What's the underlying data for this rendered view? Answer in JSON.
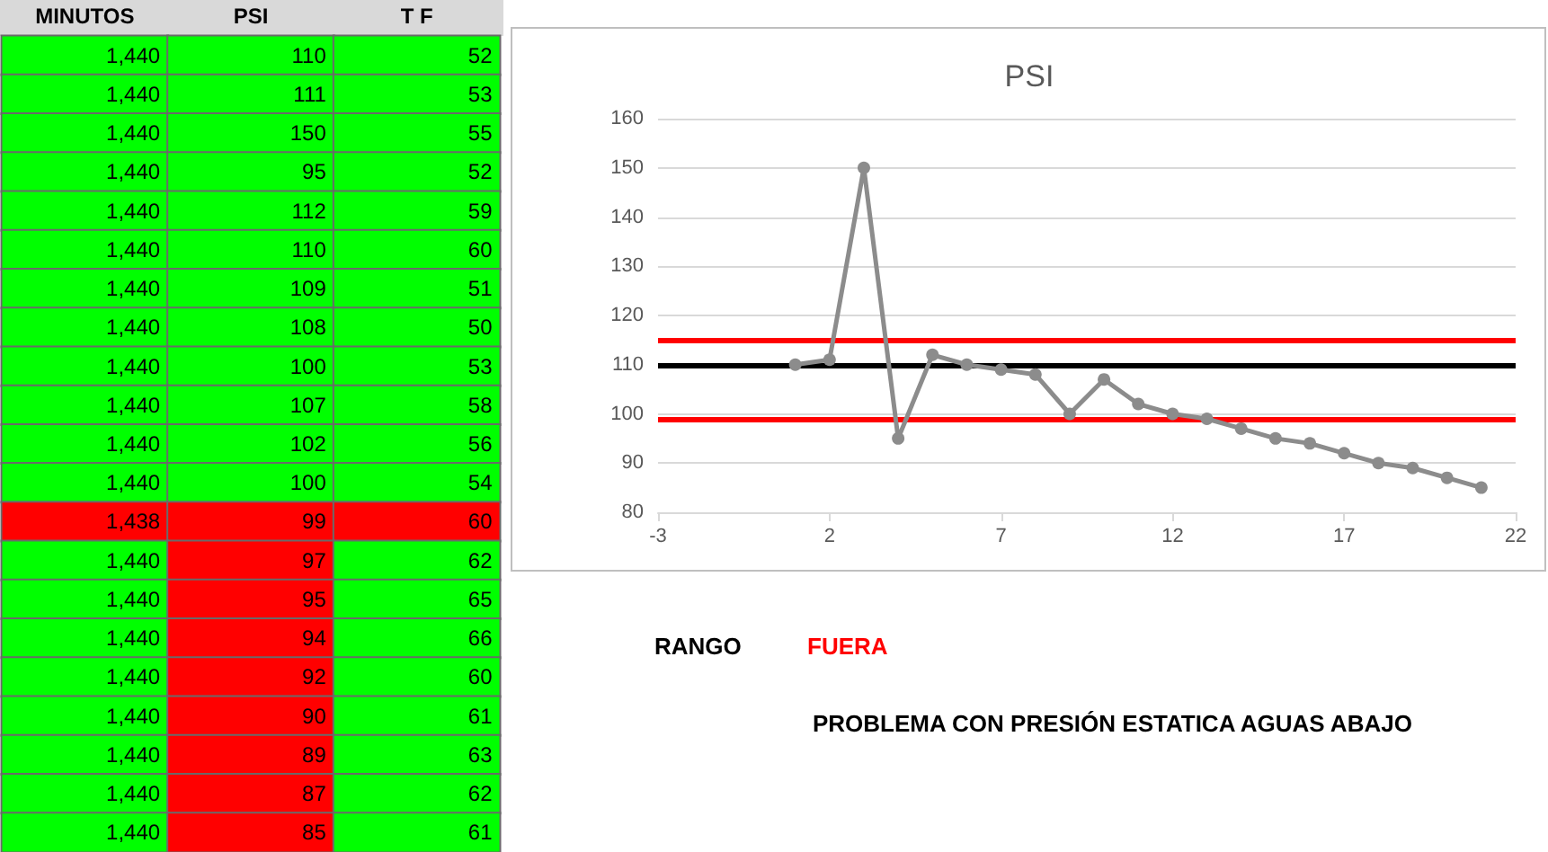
{
  "chart_data": [
    {
      "type": "heatmap",
      "data_labels": true,
      "cell_labels": [
        [
          "1,440",
          "110",
          "52"
        ],
        [
          "1,440",
          "111",
          "53"
        ],
        [
          "1,440",
          "150",
          "55"
        ],
        [
          "1,440",
          "95",
          "52"
        ],
        [
          "1,440",
          "112",
          "59"
        ],
        [
          "1,440",
          "110",
          "60"
        ],
        [
          "1,440",
          "109",
          "51"
        ],
        [
          "1,440",
          "108",
          "50"
        ],
        [
          "1,440",
          "100",
          "53"
        ],
        [
          "1,440",
          "107",
          "58"
        ],
        [
          "1,440",
          "102",
          "56"
        ],
        [
          "1,440",
          "100",
          "54"
        ],
        [
          "1,438",
          "99",
          "60"
        ],
        [
          "1,440",
          "97",
          "62"
        ],
        [
          "1,440",
          "95",
          "65"
        ],
        [
          "1,440",
          "94",
          "66"
        ],
        [
          "1,440",
          "92",
          "60"
        ],
        [
          "1,440",
          "90",
          "61"
        ],
        [
          "1,440",
          "89",
          "63"
        ],
        [
          "1,440",
          "87",
          "62"
        ],
        [
          "1,440",
          "85",
          "61"
        ]
      ],
      "categories": [
        "MINUTOS",
        "PSI",
        "T F"
      ],
      "y_categories": [
        null,
        null,
        null,
        null,
        null,
        null,
        null,
        null,
        null,
        null,
        null,
        null,
        null,
        null,
        null,
        null,
        null,
        null,
        null,
        null,
        null
      ],
      "cells": [
        [
          1440,
          110,
          52
        ],
        [
          1440,
          111,
          53
        ],
        [
          1440,
          150,
          55
        ],
        [
          1440,
          95,
          52
        ],
        [
          1440,
          112,
          59
        ],
        [
          1440,
          110,
          60
        ],
        [
          1440,
          109,
          51
        ],
        [
          1440,
          108,
          50
        ],
        [
          1440,
          100,
          53
        ],
        [
          1440,
          107,
          58
        ],
        [
          1440,
          102,
          56
        ],
        [
          1440,
          100,
          54
        ],
        [
          1438,
          99,
          60
        ],
        [
          1440,
          97,
          62
        ],
        [
          1440,
          95,
          65
        ],
        [
          1440,
          94,
          66
        ],
        [
          1440,
          92,
          60
        ],
        [
          1440,
          90,
          61
        ],
        [
          1440,
          89,
          63
        ],
        [
          1440,
          87,
          62
        ],
        [
          1440,
          85,
          61
        ]
      ],
      "colors": [
        [
          "#00ff00",
          "#00ff00",
          "#00ff00"
        ],
        [
          "#00ff00",
          "#00ff00",
          "#00ff00"
        ],
        [
          "#00ff00",
          "#00ff00",
          "#00ff00"
        ],
        [
          "#00ff00",
          "#00ff00",
          "#00ff00"
        ],
        [
          "#00ff00",
          "#00ff00",
          "#00ff00"
        ],
        [
          "#00ff00",
          "#00ff00",
          "#00ff00"
        ],
        [
          "#00ff00",
          "#00ff00",
          "#00ff00"
        ],
        [
          "#00ff00",
          "#00ff00",
          "#00ff00"
        ],
        [
          "#00ff00",
          "#00ff00",
          "#00ff00"
        ],
        [
          "#00ff00",
          "#00ff00",
          "#00ff00"
        ],
        [
          "#00ff00",
          "#00ff00",
          "#00ff00"
        ],
        [
          "#00ff00",
          "#00ff00",
          "#00ff00"
        ],
        [
          "#ff0000",
          "#ff0000",
          "#ff0000"
        ],
        [
          "#00ff00",
          "#ff0000",
          "#00ff00"
        ],
        [
          "#00ff00",
          "#ff0000",
          "#00ff00"
        ],
        [
          "#00ff00",
          "#ff0000",
          "#00ff00"
        ],
        [
          "#00ff00",
          "#ff0000",
          "#00ff00"
        ],
        [
          "#00ff00",
          "#ff0000",
          "#00ff00"
        ],
        [
          "#00ff00",
          "#ff0000",
          "#00ff00"
        ],
        [
          "#00ff00",
          "#ff0000",
          "#00ff00"
        ],
        [
          "#00ff00",
          "#ff0000",
          "#00ff00"
        ]
      ]
    },
    {
      "type": "line",
      "title": "PSI",
      "x": [
        1,
        2,
        3,
        4,
        5,
        6,
        7,
        8,
        9,
        10,
        11,
        12,
        13,
        14,
        15,
        16,
        17,
        18,
        19,
        20,
        21
      ],
      "series": [
        {
          "color": "#8c8c8c",
          "values": [
            110,
            111,
            150,
            95,
            112,
            110,
            109,
            108,
            100,
            107,
            102,
            100,
            99,
            97,
            95,
            94,
            92,
            90,
            89,
            87,
            85
          ]
        }
      ],
      "xlim": [
        -3,
        22
      ],
      "xticks": [
        -3,
        2,
        7,
        12,
        17,
        22
      ],
      "ylim": [
        80,
        160
      ],
      "yticks": [
        80,
        90,
        100,
        110,
        120,
        130,
        140,
        150,
        160
      ],
      "grid": "y",
      "marker": "circle",
      "line_style": "solid",
      "ref_lines": [
        {
          "axis": "y",
          "value": 115,
          "color": "#ff0000"
        },
        {
          "axis": "y",
          "value": 110,
          "color": "#000000"
        },
        {
          "axis": "y",
          "value": 99,
          "color": "#ff0000"
        }
      ],
      "annotations": [
        "RANGO",
        "FUERA",
        "PROBLEMA CON PRESIÓN ESTATICA AGUAS ABAJO"
      ]
    }
  ]
}
